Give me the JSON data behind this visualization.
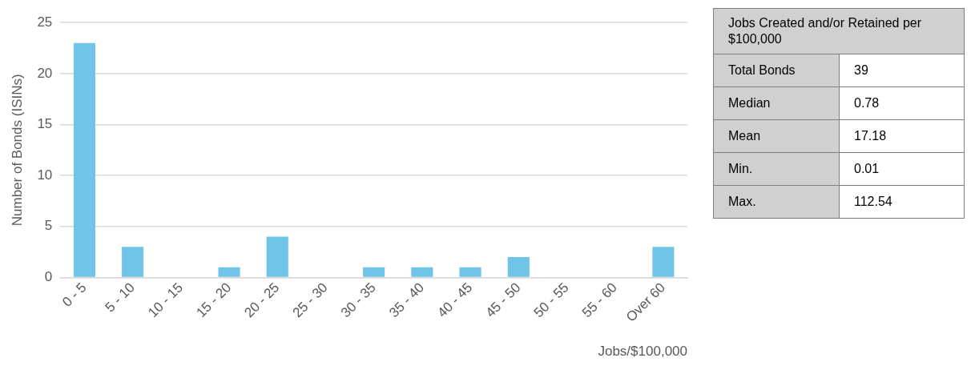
{
  "chart_data": [
    {
      "type": "bar",
      "ylabel": "Number of Bonds (ISINs)",
      "xlabel": "Jobs/$100,000",
      "categories": [
        "0 - 5",
        "5 - 10",
        "10 - 15",
        "15 - 20",
        "20 - 25",
        "25 - 30",
        "30 - 35",
        "35 - 40",
        "40 - 45",
        "45 - 50",
        "50 - 55",
        "55 - 60",
        "Over 60"
      ],
      "values": [
        23,
        3,
        0,
        1,
        4,
        0,
        1,
        1,
        1,
        2,
        0,
        0,
        3
      ],
      "color": "#70c4e8",
      "ylim": [
        0,
        25
      ],
      "yticks": [
        0,
        5,
        10,
        15,
        20,
        25
      ],
      "grid": "y",
      "legend": false
    },
    {
      "type": "other",
      "title": "Jobs Created and/or Retained per $100,000",
      "categories": [
        "Total Bonds",
        "Median",
        "Mean",
        "Min.",
        "Max."
      ],
      "values": [
        39,
        0.78,
        17.18,
        0.01,
        112.54
      ],
      "data_labels": true
    }
  ]
}
